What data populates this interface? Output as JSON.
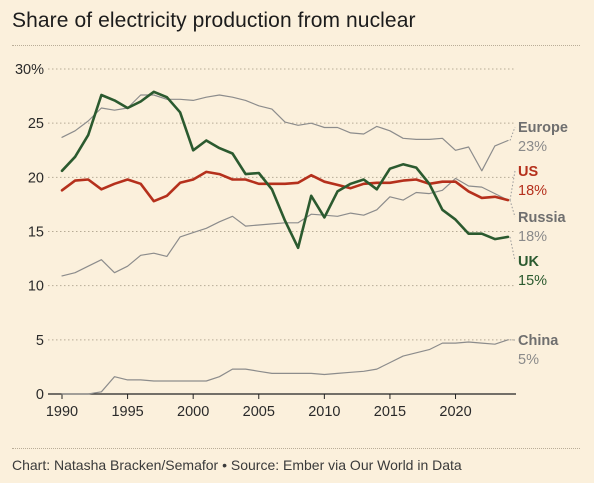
{
  "title": "Share of electricity production from nuclear",
  "source": "Chart: Natasha Bracken/Semafor • Source: Ember via Our World in Data",
  "chart_data": {
    "type": "line",
    "title": "Share of electricity production from nuclear",
    "xlabel": "",
    "ylabel": "",
    "xlim": [
      1990,
      2024
    ],
    "ylim": [
      0,
      30
    ],
    "x_ticks": [
      "1990",
      "1995",
      "2000",
      "2005",
      "2010",
      "2015",
      "2020"
    ],
    "y_ticks": [
      "0",
      "5",
      "10",
      "15",
      "20",
      "25",
      "30%"
    ],
    "grid": "horizontal dotted",
    "legend": "direct labels at right end of lines",
    "x": [
      1990,
      1991,
      1992,
      1993,
      1994,
      1995,
      1996,
      1997,
      1998,
      1999,
      2000,
      2001,
      2002,
      2003,
      2004,
      2005,
      2006,
      2007,
      2008,
      2009,
      2010,
      2011,
      2012,
      2013,
      2014,
      2015,
      2016,
      2017,
      2018,
      2019,
      2020,
      2021,
      2022,
      2023,
      2024
    ],
    "series": [
      {
        "name": "Europe",
        "end_label": "23%",
        "color": "#8c8c8c",
        "values": [
          23.7,
          24.3,
          25.2,
          26.4,
          26.2,
          26.4,
          27.6,
          27.6,
          27.2,
          27.2,
          27.1,
          27.4,
          27.6,
          27.4,
          27.1,
          26.6,
          26.3,
          25.1,
          24.8,
          25.0,
          24.6,
          24.6,
          24.1,
          24.0,
          24.7,
          24.3,
          23.6,
          23.5,
          23.5,
          23.6,
          22.5,
          22.8,
          20.6,
          22.9,
          23.4
        ]
      },
      {
        "name": "US",
        "end_label": "18%",
        "color": "#b5301c",
        "values": [
          18.8,
          19.7,
          19.8,
          18.9,
          19.4,
          19.8,
          19.4,
          17.8,
          18.3,
          19.5,
          19.8,
          20.5,
          20.3,
          19.8,
          19.8,
          19.4,
          19.4,
          19.4,
          19.5,
          20.2,
          19.6,
          19.3,
          19.0,
          19.4,
          19.5,
          19.5,
          19.7,
          19.8,
          19.4,
          19.6,
          19.6,
          18.7,
          18.1,
          18.2,
          17.9
        ]
      },
      {
        "name": "Russia",
        "end_label": "18%",
        "color": "#8c8c8c",
        "values": [
          10.9,
          11.2,
          11.8,
          12.4,
          11.2,
          11.8,
          12.8,
          13.0,
          12.7,
          14.5,
          14.9,
          15.3,
          15.9,
          16.4,
          15.5,
          15.6,
          15.7,
          15.8,
          15.8,
          16.6,
          16.5,
          16.4,
          16.7,
          16.5,
          17.0,
          18.2,
          17.9,
          18.6,
          18.5,
          18.8,
          19.9,
          19.2,
          19.1,
          18.5,
          17.9
        ]
      },
      {
        "name": "UK",
        "end_label": "15%",
        "color": "#2b5a2f",
        "values": [
          20.6,
          21.9,
          23.9,
          27.6,
          27.1,
          26.4,
          27.0,
          27.9,
          27.4,
          26.0,
          22.5,
          23.4,
          22.7,
          22.2,
          20.3,
          20.4,
          18.9,
          16.0,
          13.5,
          18.3,
          16.3,
          18.7,
          19.4,
          19.8,
          18.9,
          20.8,
          21.2,
          20.9,
          19.4,
          17.0,
          16.1,
          14.8,
          14.8,
          14.3,
          14.5
        ]
      },
      {
        "name": "China",
        "end_label": "5%",
        "color": "#8c8c8c",
        "values": [
          0,
          0,
          0,
          0.2,
          1.6,
          1.3,
          1.3,
          1.2,
          1.2,
          1.2,
          1.2,
          1.2,
          1.6,
          2.3,
          2.3,
          2.1,
          1.9,
          1.9,
          1.9,
          1.9,
          1.8,
          1.9,
          2.0,
          2.1,
          2.3,
          2.9,
          3.5,
          3.8,
          4.1,
          4.7,
          4.7,
          4.8,
          4.7,
          4.6,
          5.0
        ]
      }
    ]
  }
}
